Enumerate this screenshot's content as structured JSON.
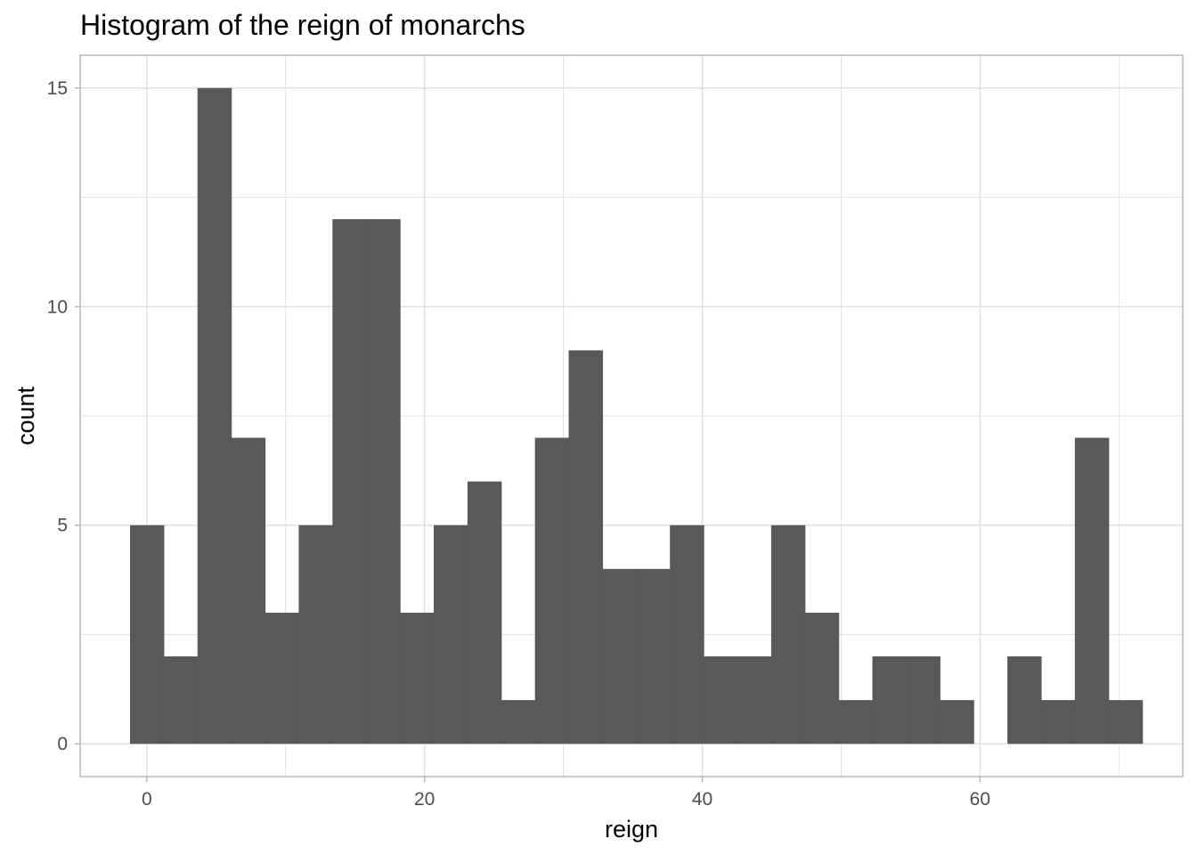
{
  "chart_data": {
    "type": "bar",
    "title": "Histogram of the reign of monarchs",
    "xlabel": "reign",
    "ylabel": "count",
    "bin_width": 2.43,
    "first_bin_start": -1.21,
    "values": [
      5,
      2,
      15,
      7,
      3,
      5,
      12,
      12,
      3,
      5,
      6,
      1,
      7,
      9,
      4,
      4,
      5,
      2,
      2,
      5,
      3,
      1,
      2,
      2,
      1,
      0,
      2,
      1,
      7,
      1
    ],
    "xlim": [
      -4.8,
      74.6
    ],
    "ylim": [
      -0.75,
      15.75
    ],
    "x_ticks": [
      0,
      20,
      40,
      60
    ],
    "y_ticks": [
      0,
      5,
      10,
      15
    ],
    "grid": true,
    "bar_color": "#595959",
    "grid_color": "#dedede",
    "border_color": "#b3b3b3"
  }
}
